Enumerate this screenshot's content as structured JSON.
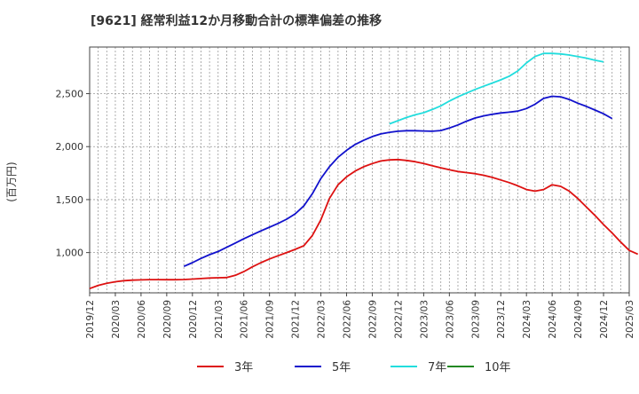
{
  "chart_data": {
    "type": "line",
    "title": "[9621]  経常利益12か月移動合計の標準偏差の推移",
    "ylabel": "(百万円)",
    "xlabel": "",
    "ylim": [
      620,
      2940
    ],
    "yticks": [
      {
        "value": 1000,
        "label": "1,000"
      },
      {
        "value": 1500,
        "label": "1,500"
      },
      {
        "value": 2000,
        "label": "2,000"
      },
      {
        "value": 2500,
        "label": "2,500"
      }
    ],
    "xticks": [
      "2019/12",
      "2020/03",
      "2020/06",
      "2020/09",
      "2020/12",
      "2021/03",
      "2021/06",
      "2021/09",
      "2021/12",
      "2022/03",
      "2022/06",
      "2022/09",
      "2022/12",
      "2023/03",
      "2023/06",
      "2023/09",
      "2023/12",
      "2024/03",
      "2024/06",
      "2024/09",
      "2024/12",
      "2025/03"
    ],
    "grid": true,
    "legend_position": "bottom",
    "series": [
      {
        "name": "3年",
        "color": "#dd1111",
        "start": "2019/12",
        "values": [
          660,
          690,
          710,
          725,
          735,
          740,
          742,
          745,
          745,
          744,
          744,
          746,
          750,
          755,
          760,
          762,
          764,
          785,
          820,
          865,
          905,
          940,
          970,
          1000,
          1030,
          1065,
          1160,
          1310,
          1510,
          1640,
          1715,
          1770,
          1810,
          1840,
          1865,
          1875,
          1878,
          1870,
          1858,
          1840,
          1820,
          1800,
          1782,
          1765,
          1755,
          1745,
          1730,
          1710,
          1685,
          1660,
          1630,
          1595,
          1580,
          1595,
          1640,
          1625,
          1580,
          1510,
          1430,
          1350,
          1265,
          1185,
          1100,
          1020,
          985
        ]
      },
      {
        "name": "5年",
        "color": "#1111cc",
        "start": "2020/11",
        "values": [
          870,
          905,
          945,
          980,
          1010,
          1050,
          1090,
          1130,
          1168,
          1205,
          1240,
          1275,
          1315,
          1365,
          1440,
          1555,
          1700,
          1810,
          1900,
          1965,
          2020,
          2060,
          2095,
          2120,
          2135,
          2145,
          2150,
          2150,
          2148,
          2145,
          2152,
          2175,
          2205,
          2240,
          2270,
          2290,
          2305,
          2318,
          2325,
          2335,
          2360,
          2400,
          2455,
          2475,
          2470,
          2445,
          2410,
          2380,
          2345,
          2310,
          2265
        ]
      },
      {
        "name": "7年",
        "color": "#22dddd",
        "start": "2022/11",
        "values": [
          2215,
          2245,
          2275,
          2300,
          2320,
          2350,
          2385,
          2430,
          2470,
          2505,
          2540,
          2570,
          2600,
          2630,
          2665,
          2715,
          2790,
          2850,
          2880,
          2880,
          2875,
          2865,
          2850,
          2835,
          2815,
          2800
        ]
      },
      {
        "name": "10年",
        "color": "#228822",
        "start": "",
        "values": []
      }
    ]
  }
}
